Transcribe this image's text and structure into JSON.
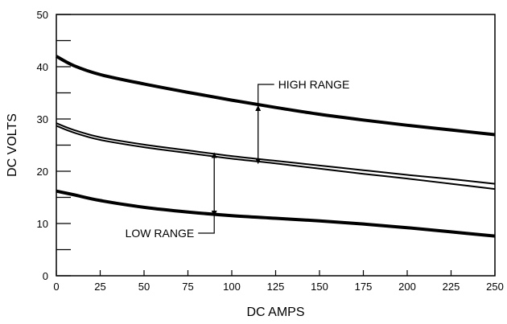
{
  "chart_data": {
    "type": "line",
    "xlabel": "DC AMPS",
    "ylabel": "DC VOLTS",
    "xlim": [
      0,
      250
    ],
    "ylim": [
      0,
      50
    ],
    "x_ticks": [
      0,
      25,
      50,
      75,
      100,
      125,
      150,
      175,
      200,
      225,
      250
    ],
    "y_ticks": [
      0,
      10,
      20,
      30,
      40,
      50
    ],
    "grid": false,
    "series": [
      {
        "key": "high-range-upper",
        "x": [
          0,
          10,
          25,
          50,
          75,
          100,
          125,
          150,
          175,
          200,
          225,
          250
        ],
        "values": [
          42,
          40.2,
          38.5,
          36.7,
          35.1,
          33.6,
          32.2,
          30.9,
          29.8,
          28.8,
          27.9,
          27
        ]
      },
      {
        "key": "high-range-lower",
        "x": [
          0,
          10,
          25,
          50,
          75,
          100,
          125,
          150,
          175,
          200,
          225,
          250
        ],
        "values": [
          29.2,
          27.9,
          26.5,
          25.1,
          24,
          22.9,
          22,
          21.1,
          20.2,
          19.3,
          18.5,
          17.6
        ]
      },
      {
        "key": "low-range-upper",
        "x": [
          0,
          10,
          25,
          50,
          75,
          100,
          125,
          150,
          175,
          200,
          225,
          250
        ],
        "values": [
          28.7,
          27.4,
          26,
          24.6,
          23.5,
          22.4,
          21.5,
          20.5,
          19.5,
          18.6,
          17.6,
          16.6
        ]
      },
      {
        "key": "low-range-lower",
        "x": [
          0,
          10,
          25,
          50,
          75,
          100,
          125,
          150,
          175,
          200,
          225,
          250
        ],
        "values": [
          16.2,
          15.5,
          14.4,
          13.1,
          12.2,
          11.5,
          11,
          10.5,
          9.9,
          9.2,
          8.4,
          7.6
        ]
      }
    ],
    "annotations": [
      {
        "key": "high",
        "text": "HIGH RANGE",
        "x": 115,
        "from": 32.5,
        "to": 21.5
      },
      {
        "key": "low",
        "text": "LOW RANGE",
        "x": 90,
        "from": 23.5,
        "to": 11.5
      }
    ]
  }
}
